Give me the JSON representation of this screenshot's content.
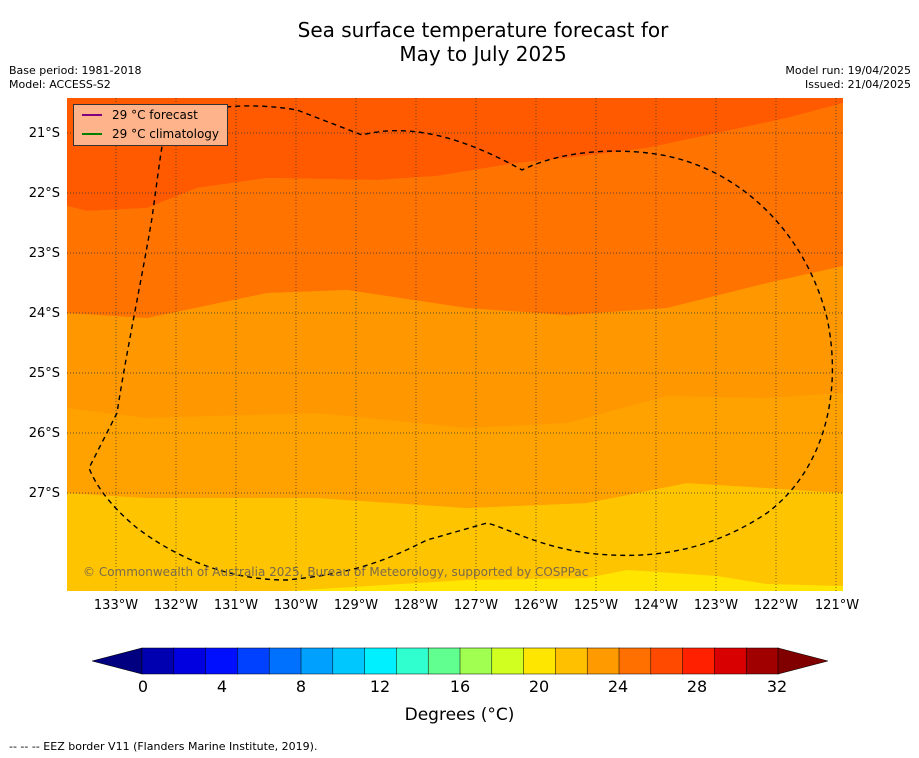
{
  "header": {
    "title_line1": "Sea surface temperature forecast for",
    "title_line2": "May to July 2025",
    "base_period": "Base period: 1981-2018",
    "model": "Model: ACCESS-S2",
    "model_run": "Model run: 19/04/2025",
    "issued": "Issued: 21/04/2025"
  },
  "map": {
    "lat_labels": [
      "21°S",
      "22°S",
      "23°S",
      "24°S",
      "25°S",
      "26°S",
      "27°S"
    ],
    "lon_labels": [
      "133°W",
      "132°W",
      "131°W",
      "130°W",
      "129°W",
      "128°W",
      "127°W",
      "126°W",
      "125°W",
      "124°W",
      "123°W",
      "122°W",
      "121°W"
    ],
    "lat_range": [
      -28.6,
      -20.4
    ],
    "lon_range": [
      -133.8,
      -120.9
    ],
    "band_colors": {
      "20-21": "#ffe500",
      "21-22": "#ffc400",
      "22-23": "#ffa200",
      "23-24": "#ff9800",
      "24-25": "#ff7300",
      "25-26": "#ff5a00"
    },
    "eez_border_style": "dashed",
    "legend": {
      "forecast_label": "29 °C  forecast",
      "forecast_color": "#800080",
      "climatology_label": "29 °C  climatology",
      "climatology_color": "#008000"
    },
    "copyright": "© Commonwealth of Australia 2025, Bureau of Meteorology, supported by COSPPac"
  },
  "colorbar": {
    "ticks": [
      "0",
      "4",
      "8",
      "12",
      "16",
      "20",
      "24",
      "28",
      "32"
    ],
    "label": "Degrees (°C)",
    "min": 0,
    "max": 34,
    "step": 2,
    "colors": [
      "#000080",
      "#0000b0",
      "#0000e0",
      "#0010ff",
      "#0040ff",
      "#0070ff",
      "#00a0ff",
      "#00c8ff",
      "#00f0ff",
      "#30ffd0",
      "#60ff90",
      "#a0ff50",
      "#d0ff20",
      "#ffe600",
      "#ffc000",
      "#ff9a00",
      "#ff7000",
      "#ff4a00",
      "#ff2000",
      "#d80000",
      "#a00000",
      "#800000"
    ]
  },
  "footer": "--  --  -- EEZ border V11 (Flanders Marine Institute, 2019)."
}
